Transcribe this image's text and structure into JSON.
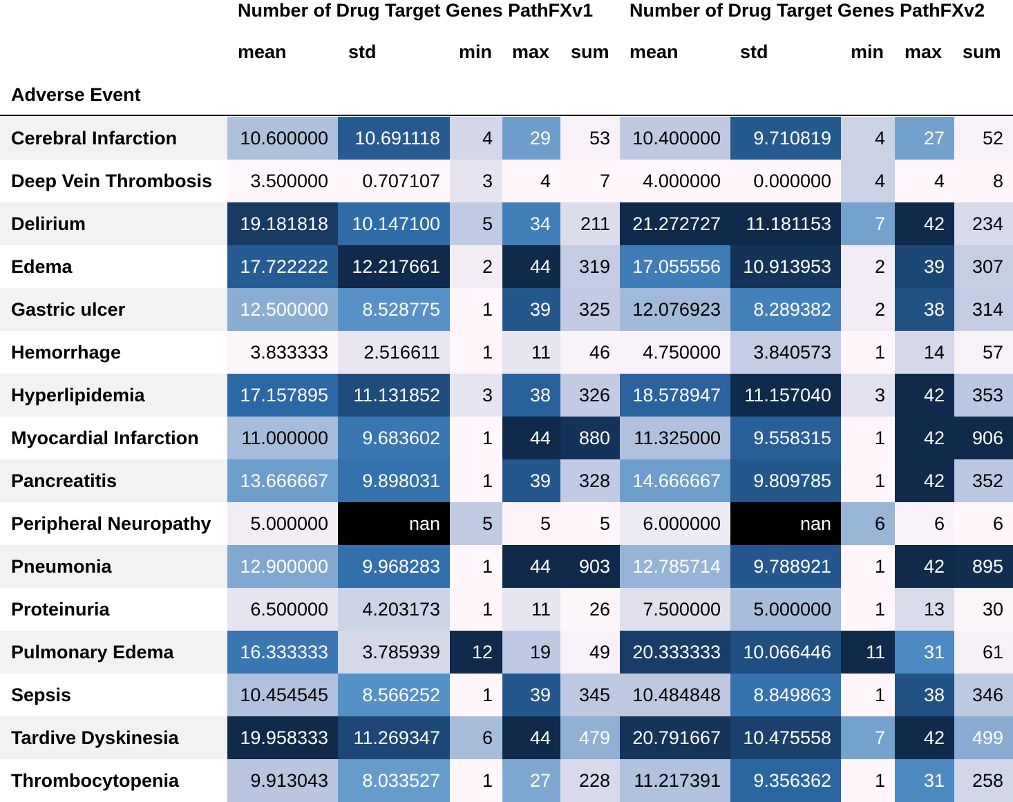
{
  "table": {
    "group_headers": [
      "Number of Drug Target Genes PathFXv1",
      "Number of Drug Target Genes PathFXv2"
    ],
    "sub_headers": [
      "mean",
      "std",
      "min",
      "max",
      "sum",
      "mean",
      "std",
      "min",
      "max",
      "sum"
    ],
    "index_name": "Adverse Event"
  },
  "chart_data": {
    "type": "table",
    "title": "",
    "index_name": "Adverse Event",
    "column_groups": [
      "Number of Drug Target Genes PathFXv1",
      "Number of Drug Target Genes PathFXv2"
    ],
    "columns": [
      "mean",
      "std",
      "min",
      "max",
      "sum",
      "mean",
      "std",
      "min",
      "max",
      "sum"
    ],
    "colormap": "Blues (per-column gradient, darker = higher, black = nan)",
    "rows": [
      {
        "label": "Cerebral Infarction",
        "cells": [
          "10.600000",
          "10.691118",
          "4",
          "29",
          "53",
          "10.400000",
          "9.710819",
          "4",
          "27",
          "52"
        ]
      },
      {
        "label": "Deep Vein Thrombosis",
        "cells": [
          "3.500000",
          "0.707107",
          "3",
          "4",
          "7",
          "4.000000",
          "0.000000",
          "4",
          "4",
          "8"
        ]
      },
      {
        "label": "Delirium",
        "cells": [
          "19.181818",
          "10.147100",
          "5",
          "34",
          "211",
          "21.272727",
          "11.181153",
          "7",
          "42",
          "234"
        ]
      },
      {
        "label": "Edema",
        "cells": [
          "17.722222",
          "12.217661",
          "2",
          "44",
          "319",
          "17.055556",
          "10.913953",
          "2",
          "39",
          "307"
        ]
      },
      {
        "label": "Gastric ulcer",
        "cells": [
          "12.500000",
          "8.528775",
          "1",
          "39",
          "325",
          "12.076923",
          "8.289382",
          "2",
          "38",
          "314"
        ]
      },
      {
        "label": "Hemorrhage",
        "cells": [
          "3.833333",
          "2.516611",
          "1",
          "11",
          "46",
          "4.750000",
          "3.840573",
          "1",
          "14",
          "57"
        ]
      },
      {
        "label": "Hyperlipidemia",
        "cells": [
          "17.157895",
          "11.131852",
          "3",
          "38",
          "326",
          "18.578947",
          "11.157040",
          "3",
          "42",
          "353"
        ]
      },
      {
        "label": "Myocardial Infarction",
        "cells": [
          "11.000000",
          "9.683602",
          "1",
          "44",
          "880",
          "11.325000",
          "9.558315",
          "1",
          "42",
          "906"
        ]
      },
      {
        "label": "Pancreatitis",
        "cells": [
          "13.666667",
          "9.898031",
          "1",
          "39",
          "328",
          "14.666667",
          "9.809785",
          "1",
          "42",
          "352"
        ]
      },
      {
        "label": "Peripheral Neuropathy",
        "cells": [
          "5.000000",
          "nan",
          "5",
          "5",
          "5",
          "6.000000",
          "nan",
          "6",
          "6",
          "6"
        ]
      },
      {
        "label": "Pneumonia",
        "cells": [
          "12.900000",
          "9.968283",
          "1",
          "44",
          "903",
          "12.785714",
          "9.788921",
          "1",
          "42",
          "895"
        ]
      },
      {
        "label": "Proteinuria",
        "cells": [
          "6.500000",
          "4.203173",
          "1",
          "11",
          "26",
          "7.500000",
          "5.000000",
          "1",
          "13",
          "30"
        ]
      },
      {
        "label": "Pulmonary Edema",
        "cells": [
          "16.333333",
          "3.785939",
          "12",
          "19",
          "49",
          "20.333333",
          "10.066446",
          "11",
          "31",
          "61"
        ]
      },
      {
        "label": "Sepsis",
        "cells": [
          "10.454545",
          "8.566252",
          "1",
          "39",
          "345",
          "10.484848",
          "8.849863",
          "1",
          "38",
          "346"
        ]
      },
      {
        "label": "Tardive Dyskinesia",
        "cells": [
          "19.958333",
          "11.269347",
          "6",
          "44",
          "479",
          "20.791667",
          "10.475558",
          "7",
          "42",
          "499"
        ]
      },
      {
        "label": "Thrombocytopenia",
        "cells": [
          "9.913043",
          "8.033527",
          "1",
          "27",
          "228",
          "11.217391",
          "9.356362",
          "1",
          "31",
          "258"
        ]
      }
    ]
  },
  "colors": {
    "stripe": "#f2f2f2",
    "nan": "#000000",
    "blues_low": "#fff7fb",
    "blues_mid": "#4a86c0",
    "blues_high": "#0f2a4a"
  }
}
